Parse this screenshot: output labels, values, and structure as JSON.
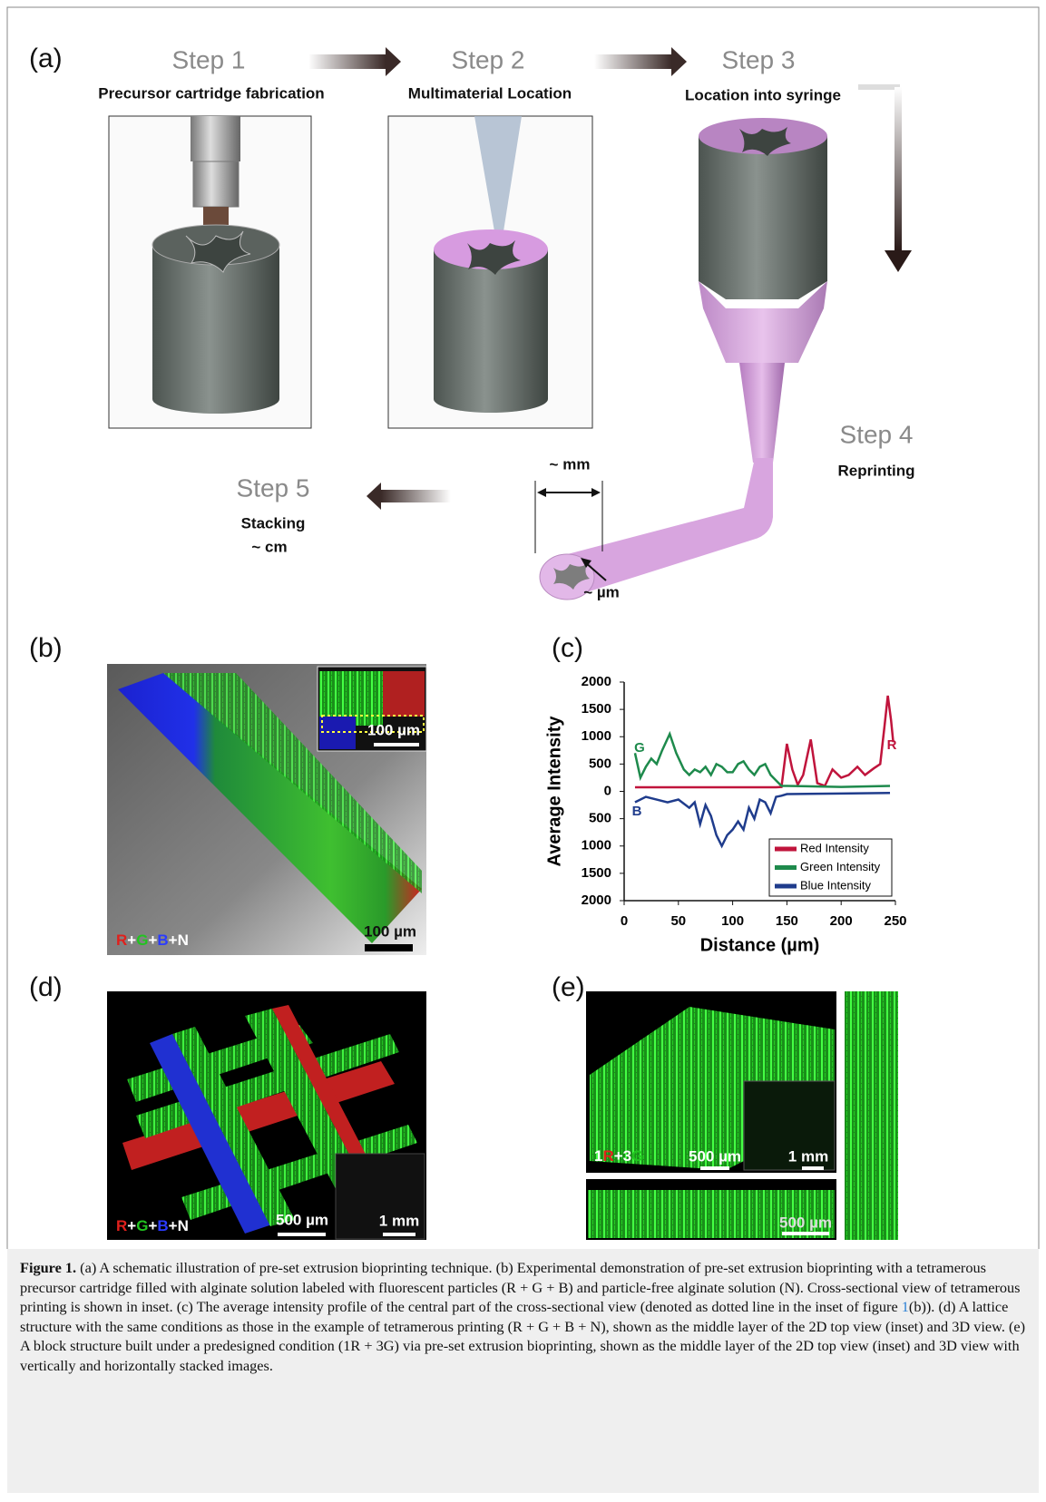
{
  "panel_labels": [
    "(a)",
    "(b)",
    "(c)",
    "(d)",
    "(e)"
  ],
  "steps": [
    {
      "title": "Step 1",
      "subtitle": "Precursor cartridge fabrication"
    },
    {
      "title": "Step 2",
      "subtitle": "Multimaterial Location"
    },
    {
      "title": "Step 3",
      "subtitle": "Location into syringe"
    },
    {
      "title": "Step 4",
      "subtitle": "Reprinting"
    },
    {
      "title": "Step 5",
      "subtitle": "Stacking",
      "size": "~ cm"
    }
  ],
  "dimensions": {
    "width": "~ mm",
    "pore": "~ µm"
  },
  "panel_b": {
    "inset_scale": "100 µm",
    "scale": "100 µm",
    "label_parts": [
      "R",
      "+",
      "G",
      "+",
      "B",
      "+N"
    ]
  },
  "panel_d": {
    "scale": "500 µm",
    "inset_scale": "1 mm",
    "label_parts": [
      "R",
      "+",
      "G",
      "+",
      "B",
      "+N"
    ]
  },
  "panel_e": {
    "label_parts": [
      "1",
      "R",
      "+3",
      "G"
    ],
    "scale": "500 µm",
    "inset_scale": "1 mm",
    "side_scale": "500 µm"
  },
  "chart_data": {
    "type": "line",
    "x_label": "Distance (µm)",
    "y_label": "Average Intensity",
    "xlim": [
      0,
      250
    ],
    "xticks": [
      0,
      50,
      100,
      150,
      200,
      250
    ],
    "ylim": [
      -2000,
      2000
    ],
    "yticks": [
      2000,
      1500,
      1000,
      500,
      0,
      {
        "value": -500,
        "label": "500"
      },
      {
        "value": -1000,
        "label": "1000"
      },
      {
        "value": -1500,
        "label": "1500"
      },
      {
        "value": -2000,
        "label": "2000"
      }
    ],
    "annotations": [
      "R",
      "G",
      "B"
    ],
    "series": [
      {
        "name": "Red Intensity",
        "color": "#c0143c",
        "x": [
          10,
          140,
          145,
          150,
          155,
          160,
          165,
          172,
          178,
          185,
          192,
          200,
          207,
          215,
          222,
          230,
          236,
          240,
          243,
          246,
          248
        ],
        "values": [
          75,
          75,
          80,
          870,
          400,
          120,
          300,
          950,
          150,
          100,
          400,
          250,
          300,
          450,
          300,
          420,
          500,
          1200,
          1750,
          1300,
          900
        ]
      },
      {
        "name": "Green Intensity",
        "color": "#1e8a4c",
        "x": [
          10,
          15,
          20,
          25,
          30,
          35,
          42,
          48,
          55,
          60,
          65,
          70,
          75,
          80,
          85,
          90,
          95,
          100,
          105,
          110,
          115,
          120,
          125,
          130,
          135,
          140,
          145,
          150,
          200,
          245
        ],
        "values": [
          700,
          250,
          450,
          600,
          500,
          750,
          1050,
          700,
          400,
          300,
          400,
          350,
          450,
          300,
          500,
          450,
          350,
          350,
          500,
          550,
          400,
          300,
          450,
          500,
          300,
          200,
          100,
          100,
          80,
          100
        ]
      },
      {
        "name": "Blue Intensity",
        "color": "#1f3c8c",
        "x": [
          10,
          20,
          30,
          40,
          50,
          60,
          65,
          70,
          75,
          80,
          85,
          90,
          95,
          100,
          105,
          110,
          115,
          120,
          125,
          130,
          135,
          140,
          145,
          150,
          200,
          245
        ],
        "values": [
          -200,
          -100,
          -150,
          -200,
          -150,
          -300,
          -200,
          -600,
          -250,
          -450,
          -800,
          -1000,
          -800,
          -700,
          -550,
          -700,
          -300,
          -500,
          -150,
          -200,
          -400,
          -100,
          -80,
          -50,
          -40,
          -30
        ]
      }
    ]
  },
  "caption": {
    "label": "Figure 1.",
    "text_1": " (a) A schematic illustration of pre-set extrusion bioprinting technique. (b) Experimental demonstration of pre-set extrusion bioprinting with a tetramerous precursor cartridge filled with alginate solution labeled with fluorescent particles (R + G + B) and particle-free alginate solution (N). Cross-sectional view of tetramerous printing is shown in inset. (c) The average intensity profile of the central part of the cross-sectional view (denoted as dotted line in the inset of figure ",
    "ref": "1",
    "text_2": "(b)). (d) A lattice structure with the same conditions as those in the example of tetramerous printing (R + G + B + N), shown as the middle layer of the 2D top view (inset) and 3D view. (e) A block structure built under a predesigned condition (1R + 3G) via pre-set extrusion bioprinting, shown as the middle layer of the 2D top view (inset) and 3D view with vertically and horizontally stacked images."
  }
}
